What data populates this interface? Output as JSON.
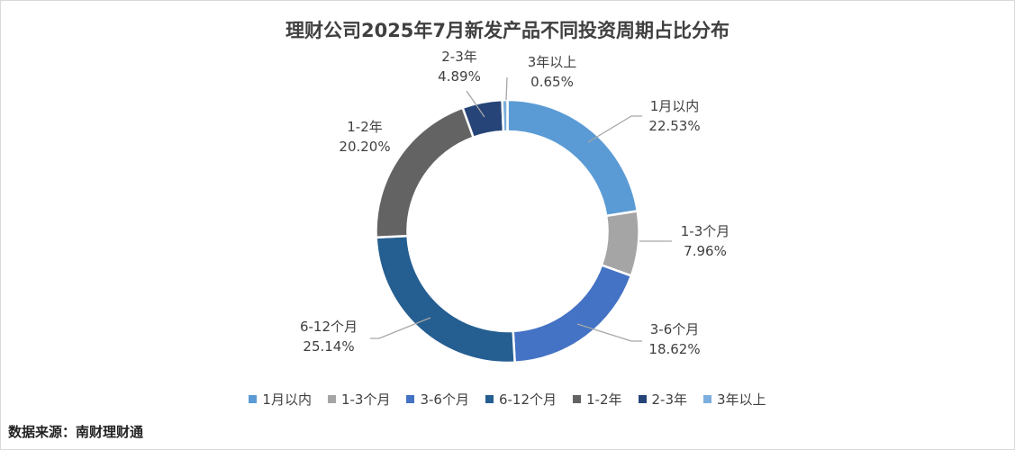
{
  "chart_data": {
    "type": "pie",
    "donut": true,
    "title": "理财公司2025年7月新发产品不同投资周期占比分布",
    "categories": [
      "1月以内",
      "1-3个月",
      "3-6个月",
      "6-12个月",
      "1-2年",
      "2-3年",
      "3年以上"
    ],
    "values": [
      22.53,
      7.96,
      18.62,
      25.14,
      20.2,
      4.89,
      0.65
    ],
    "value_labels": [
      "22.53%",
      "7.96%",
      "18.62%",
      "25.14%",
      "20.20%",
      "4.89%",
      "0.65%"
    ],
    "colors": [
      "#5B9BD5",
      "#A5A5A5",
      "#4472C4",
      "#255E91",
      "#636363",
      "#264478",
      "#7CAFDD"
    ],
    "legend": "bottom",
    "start_angle": "12 o'clock, clockwise"
  },
  "source": "数据来源：南财理财通"
}
